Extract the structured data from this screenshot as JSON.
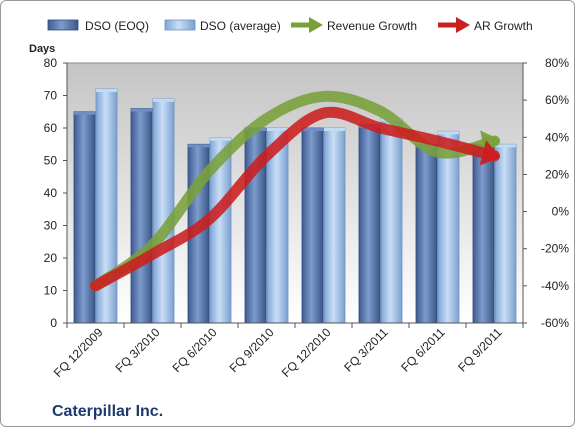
{
  "chart_data": {
    "type": "bar",
    "company": "Caterpillar Inc.",
    "categories": [
      "FQ 12/2009",
      "FQ 3/2010",
      "FQ 6/2010",
      "FQ 9/2010",
      "FQ 12/2010",
      "FQ 3/2011",
      "FQ 6/2011",
      "FQ 9/2011"
    ],
    "y_left": {
      "title": "Days",
      "min": 0,
      "max": 80,
      "ticks": [
        0,
        10,
        20,
        30,
        40,
        50,
        60,
        70,
        80
      ]
    },
    "y_right": {
      "min": -60,
      "max": 80,
      "ticks": [
        "-60%",
        "-40%",
        "-20%",
        "0%",
        "20%",
        "40%",
        "60%",
        "80%"
      ]
    },
    "grid": false,
    "legend_position": "top",
    "series": [
      {
        "name": "DSO (EOQ)",
        "kind": "bar",
        "axis": "left",
        "color": "#4f6fa8",
        "values": [
          65,
          66,
          55,
          60,
          60,
          61,
          55,
          55
        ]
      },
      {
        "name": "DSO (average)",
        "kind": "bar",
        "axis": "left",
        "color": "#9cc0e8",
        "values": [
          72,
          69,
          57,
          60,
          60,
          63,
          59,
          55
        ]
      },
      {
        "name": "Revenue Growth",
        "kind": "arrow",
        "axis": "right",
        "color": "#79a13a",
        "values": [
          -40,
          -18,
          22,
          50,
          62,
          54,
          32,
          38
        ]
      },
      {
        "name": "AR Growth",
        "kind": "arrow",
        "axis": "right",
        "color": "#cc1e1e",
        "values": [
          -40,
          -23,
          -4,
          30,
          53,
          45,
          38,
          30
        ]
      }
    ]
  }
}
